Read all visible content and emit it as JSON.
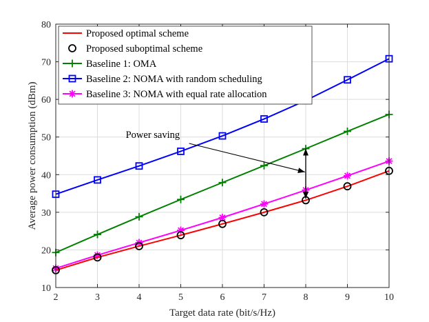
{
  "chart_data": {
    "type": "line",
    "title": "",
    "xlabel": "Target data rate (bit/s/Hz)",
    "ylabel": "Average power consumption (dBm)",
    "xlim": [
      2,
      10
    ],
    "ylim": [
      10,
      80
    ],
    "xticks": [
      2,
      3,
      4,
      5,
      6,
      7,
      8,
      9,
      10
    ],
    "yticks": [
      10,
      20,
      30,
      40,
      50,
      60,
      70,
      80
    ],
    "grid": true,
    "legend_position": "top-left",
    "x": [
      2,
      3,
      4,
      5,
      6,
      7,
      8,
      9,
      10
    ],
    "series": [
      {
        "name": "Proposed optimal scheme",
        "color": "#ff0000",
        "line": true,
        "marker": "none",
        "values": [
          14.6,
          18.0,
          21.0,
          23.9,
          26.9,
          30.0,
          33.2,
          36.9,
          41.0
        ]
      },
      {
        "name": "Proposed suboptimal scheme",
        "color": "#000000",
        "line": false,
        "marker": "circle",
        "values": [
          14.6,
          18.0,
          21.0,
          23.9,
          26.9,
          30.0,
          33.2,
          36.9,
          41.0
        ]
      },
      {
        "name": "Baseline 1: OMA",
        "color": "#008000",
        "line": true,
        "marker": "plus",
        "values": [
          19.3,
          24.1,
          28.8,
          33.4,
          37.9,
          42.4,
          46.9,
          51.5,
          56.0
        ]
      },
      {
        "name": "Baseline 2: NOMA with random scheduling",
        "color": "#0000ff",
        "line": true,
        "marker": "square",
        "values": [
          34.8,
          38.6,
          42.3,
          46.2,
          50.3,
          54.8,
          59.7,
          65.2,
          70.8
        ]
      },
      {
        "name": "Baseline 3: NOMA with equal rate allocation",
        "color": "#ff00ff",
        "line": true,
        "marker": "asterisk",
        "values": [
          15.1,
          18.6,
          21.9,
          25.2,
          28.6,
          32.2,
          35.9,
          39.7,
          43.6
        ]
      }
    ],
    "annotations": [
      {
        "text": "Power saving",
        "arrow_from_data": [
          5.2,
          48.3
        ],
        "arrow_to_data": [
          7.98,
          40.7
        ],
        "bracket_x": 8,
        "bracket_from": 33.6,
        "bracket_to": 46.9
      }
    ]
  }
}
